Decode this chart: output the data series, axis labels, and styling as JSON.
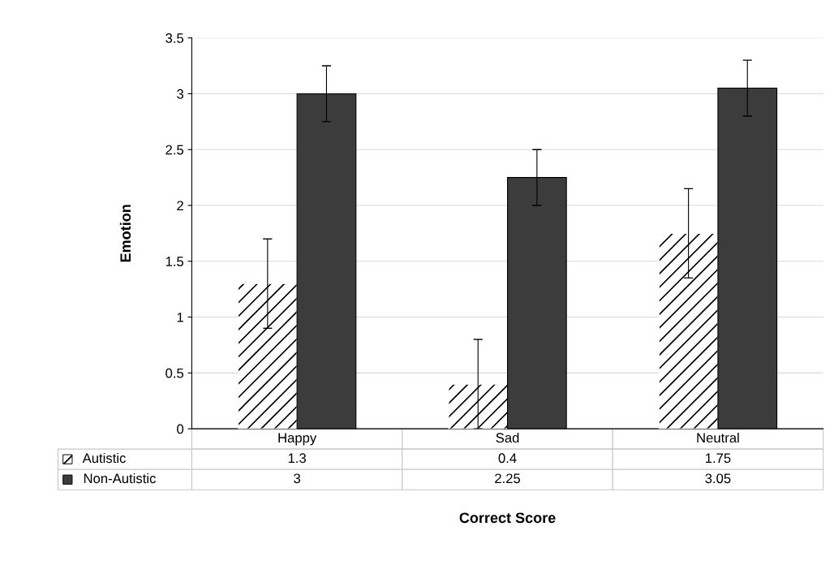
{
  "chart_data": {
    "type": "bar",
    "categories": [
      "Happy",
      "Sad",
      "Neutral"
    ],
    "ylabel": "Emotion",
    "xlabel": "Correct Score",
    "series": [
      {
        "name": "Autistic",
        "color": "#ffffff",
        "values": [
          1.3,
          0.4,
          1.75
        ],
        "errors": [
          0.4,
          0.4,
          0.4
        ]
      },
      {
        "name": "Non-Autistic",
        "color": "#3c3c3c",
        "values": [
          3,
          2.25,
          3.05
        ],
        "errors": [
          0.25,
          0.25,
          0.25
        ]
      }
    ],
    "ylim": [
      0,
      3.5
    ],
    "yticks": [
      0,
      0.5,
      1,
      1.5,
      2,
      2.5,
      3,
      3.5
    ],
    "grid": "y",
    "data_labels": true,
    "legend": "bottom left"
  }
}
